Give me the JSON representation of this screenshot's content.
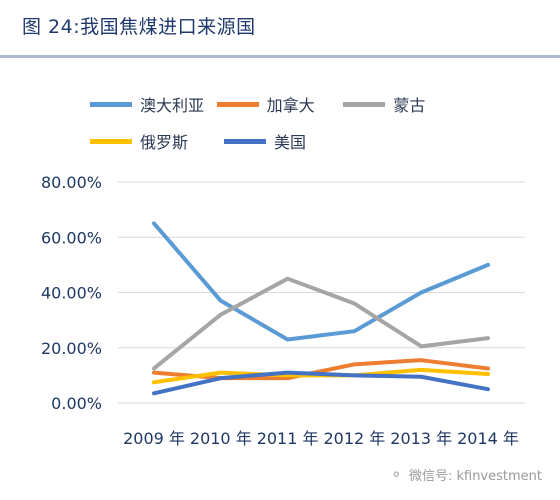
{
  "figure": {
    "title": "图 24:我国焦煤进口来源国"
  },
  "watermark": {
    "text": "微信号: kfinvestment",
    "icon": "wechat-icon"
  },
  "chart_data": {
    "type": "line",
    "categories": [
      "2009 年",
      "2010 年",
      "2011 年",
      "2012 年",
      "2013 年",
      "2014 年"
    ],
    "y_tick_labels": [
      "0.00%",
      "20.00%",
      "40.00%",
      "60.00%",
      "80.00%"
    ],
    "ylim": [
      0,
      80
    ],
    "grid": true,
    "legend_position": "top",
    "series": [
      {
        "name": "澳大利亚",
        "color": "#5b9bd5",
        "values": [
          65,
          37,
          23,
          26,
          40,
          50
        ]
      },
      {
        "name": "加拿大",
        "color": "#ed7d31",
        "values": [
          11,
          9,
          9,
          14,
          15.5,
          12.5
        ]
      },
      {
        "name": "蒙古",
        "color": "#a5a5a5",
        "values": [
          12.5,
          32,
          45,
          36,
          20.5,
          23.5
        ]
      },
      {
        "name": "俄罗斯",
        "color": "#ffc000",
        "values": [
          7.5,
          11,
          10,
          10,
          12,
          10.5
        ]
      },
      {
        "name": "美国",
        "color": "#4472c4",
        "values": [
          3.5,
          9,
          11,
          10,
          9.5,
          5
        ]
      }
    ]
  }
}
